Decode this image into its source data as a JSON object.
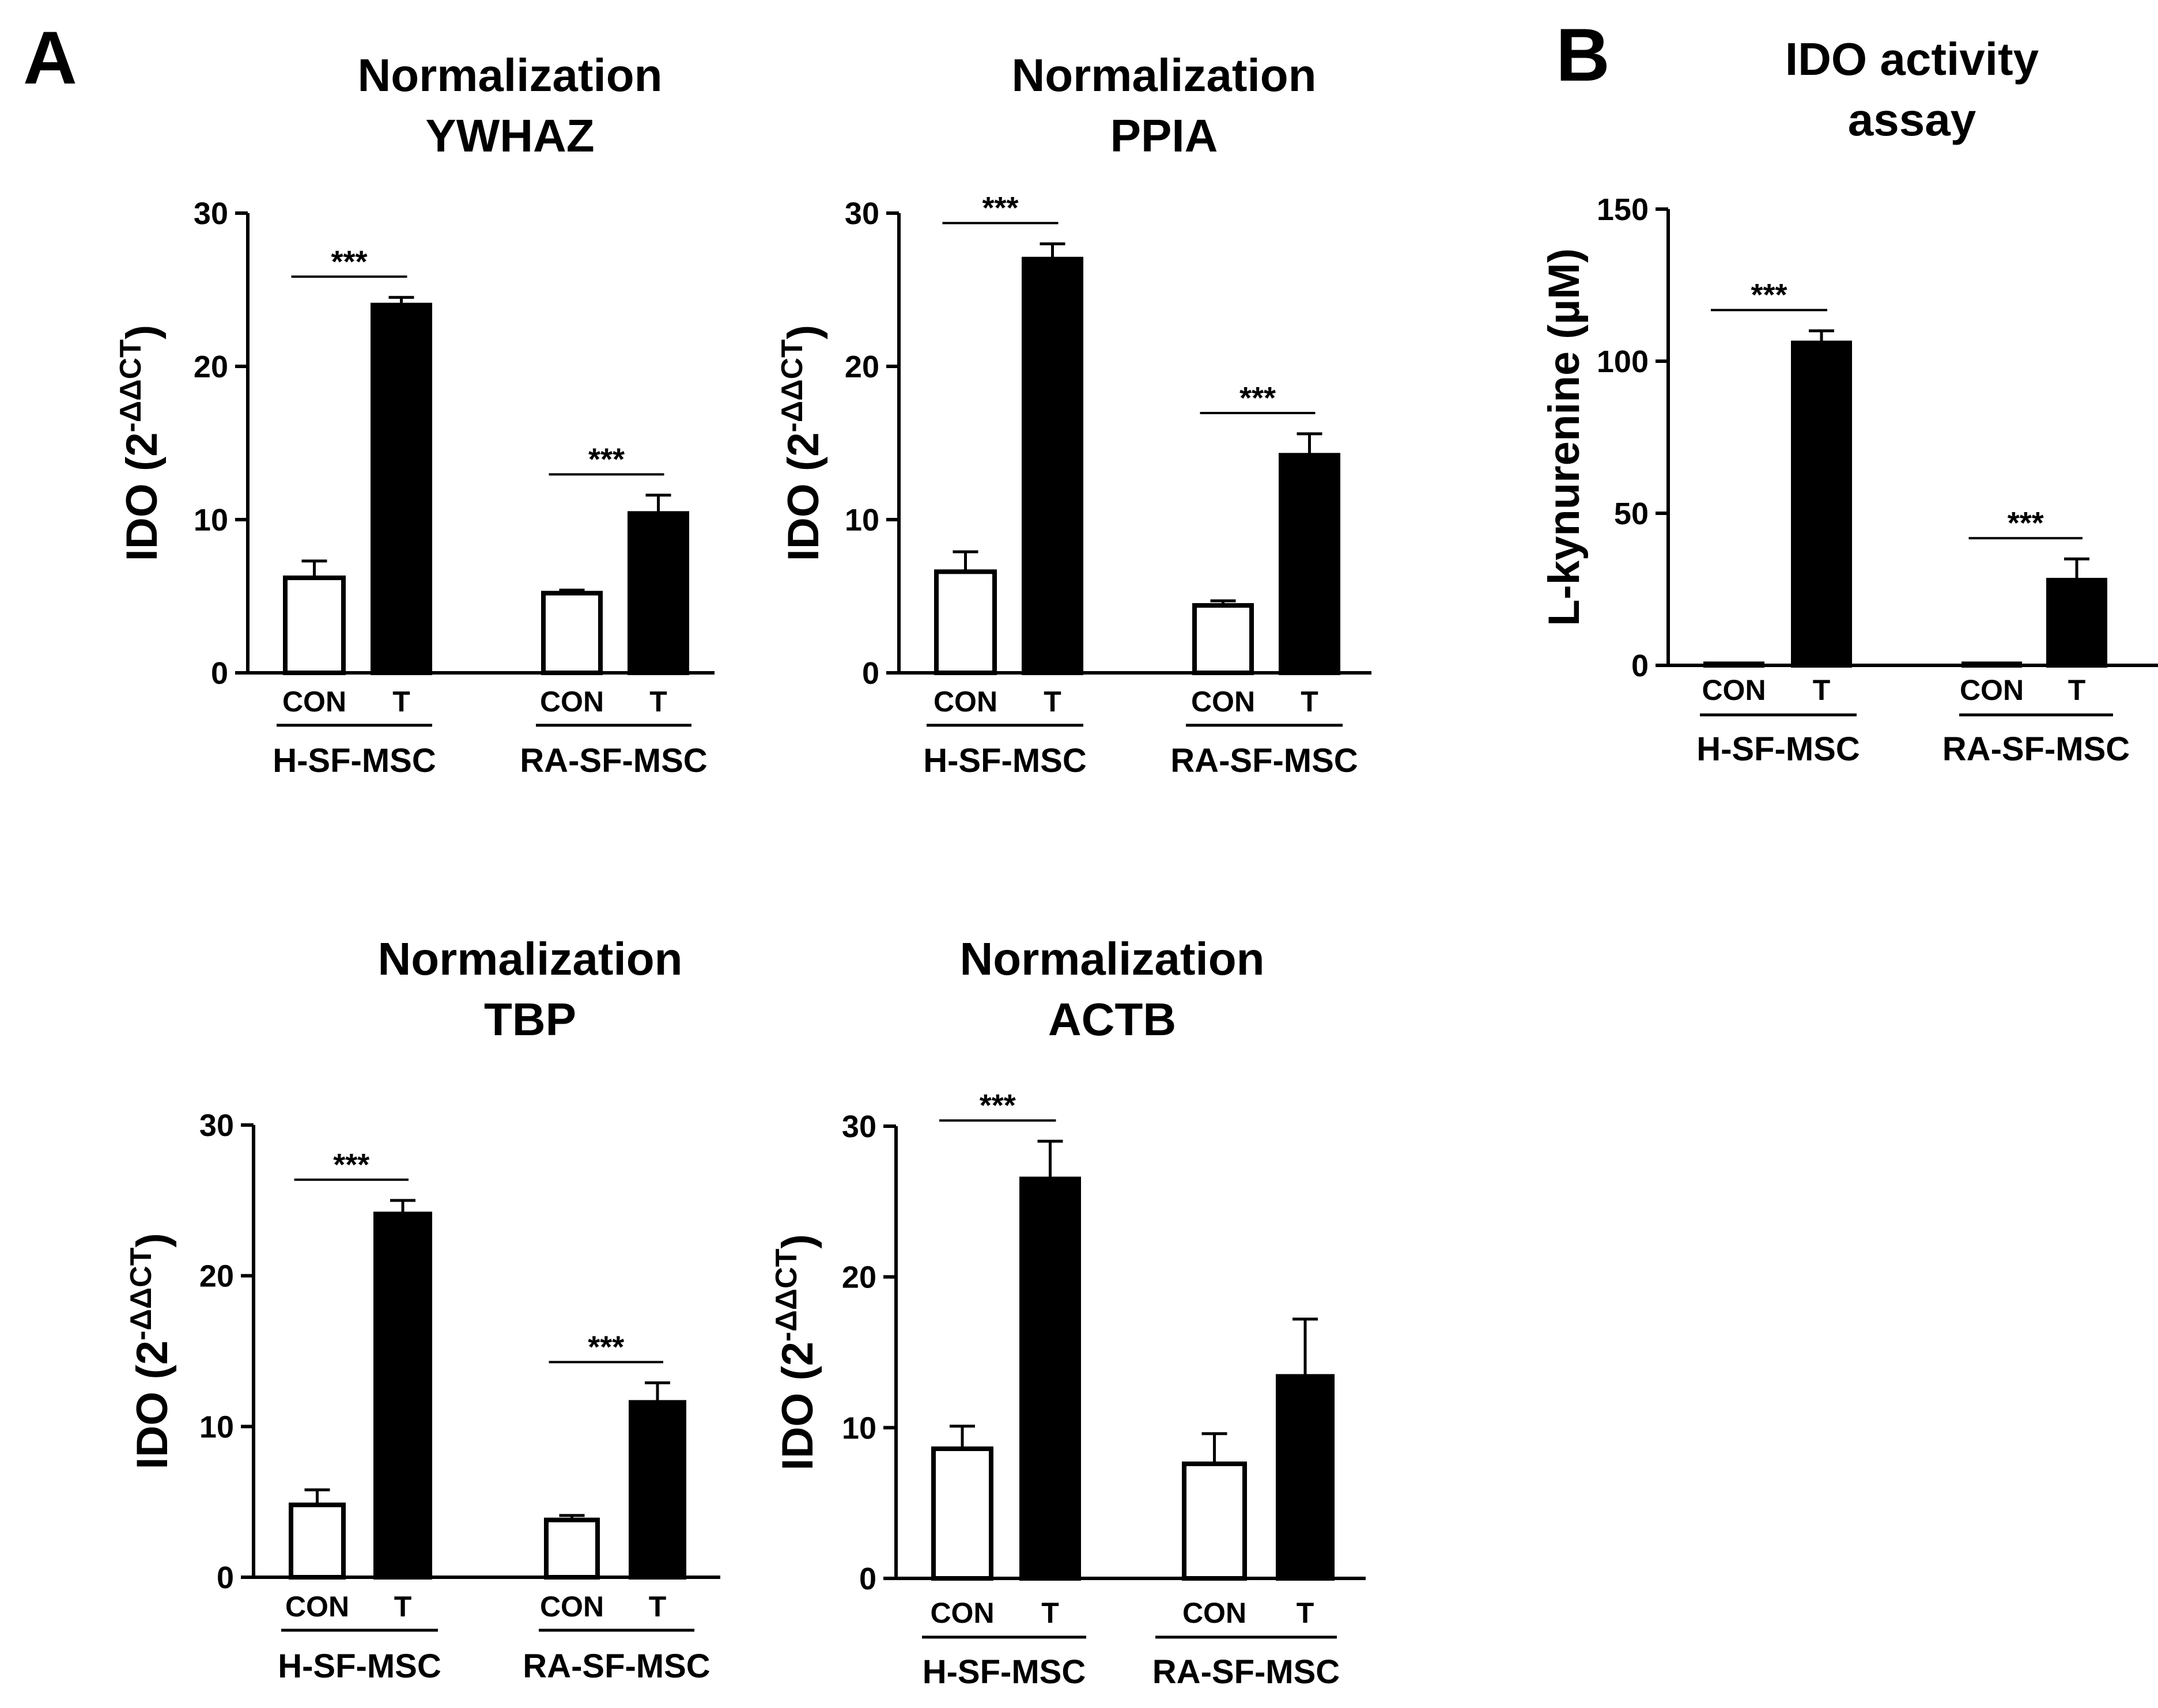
{
  "panels": [
    {
      "letter": "A"
    },
    {
      "letter": "B"
    }
  ],
  "chart_data": [
    {
      "id": "ywhaz",
      "panel": "A",
      "type": "bar",
      "title_lines": [
        "Normalization",
        "YWHAZ"
      ],
      "ylabel_main": "IDO (2",
      "ylabel_sup": "-ΔΔCT",
      "ylabel_close": ")",
      "ylim": [
        0,
        30
      ],
      "yticks": [
        0,
        10,
        20,
        30
      ],
      "groups": [
        {
          "name": "H-SF-MSC",
          "bars": [
            {
              "label": "CON",
              "value": 6.2,
              "error": 1.1,
              "filled": false
            },
            {
              "label": "T",
              "value": 24.0,
              "error": 0.5,
              "filled": true
            }
          ],
          "significance": "***"
        },
        {
          "name": "RA-SF-MSC",
          "bars": [
            {
              "label": "CON",
              "value": 5.2,
              "error": 0.2,
              "filled": false
            },
            {
              "label": "T",
              "value": 10.4,
              "error": 1.2,
              "filled": true
            }
          ],
          "significance": "***"
        }
      ]
    },
    {
      "id": "ppia",
      "panel": "A",
      "type": "bar",
      "title_lines": [
        "Normalization",
        "PPIA"
      ],
      "ylabel_main": "IDO (2",
      "ylabel_sup": "-ΔΔCT",
      "ylabel_close": ")",
      "ylim": [
        0,
        30
      ],
      "yticks": [
        0,
        10,
        20,
        30
      ],
      "groups": [
        {
          "name": "H-SF-MSC",
          "bars": [
            {
              "label": "CON",
              "value": 6.6,
              "error": 1.3,
              "filled": false
            },
            {
              "label": "T",
              "value": 27.0,
              "error": 1.0,
              "filled": true
            }
          ],
          "significance": "***"
        },
        {
          "name": "RA-SF-MSC",
          "bars": [
            {
              "label": "CON",
              "value": 4.4,
              "error": 0.3,
              "filled": false
            },
            {
              "label": "T",
              "value": 14.2,
              "error": 1.4,
              "filled": true
            }
          ],
          "significance": "***"
        }
      ]
    },
    {
      "id": "tbp",
      "panel": "A",
      "type": "bar",
      "title_lines": [
        "Normalization",
        "TBP"
      ],
      "ylabel_main": "IDO (2",
      "ylabel_sup": "-ΔΔCT",
      "ylabel_close": ")",
      "ylim": [
        0,
        30
      ],
      "yticks": [
        0,
        10,
        20,
        30
      ],
      "groups": [
        {
          "name": "H-SF-MSC",
          "bars": [
            {
              "label": "CON",
              "value": 4.8,
              "error": 1.0,
              "filled": false
            },
            {
              "label": "T",
              "value": 24.1,
              "error": 0.9,
              "filled": true
            }
          ],
          "significance": "***"
        },
        {
          "name": "RA-SF-MSC",
          "bars": [
            {
              "label": "CON",
              "value": 3.8,
              "error": 0.3,
              "filled": false
            },
            {
              "label": "T",
              "value": 11.6,
              "error": 1.3,
              "filled": true
            }
          ],
          "significance": "***"
        }
      ]
    },
    {
      "id": "actb",
      "panel": "A",
      "type": "bar",
      "title_lines": [
        "Normalization",
        "ACTB"
      ],
      "ylabel_main": "IDO (2",
      "ylabel_sup": "-ΔΔCT",
      "ylabel_close": ")",
      "ylim": [
        0,
        30
      ],
      "yticks": [
        0,
        10,
        20,
        30
      ],
      "groups": [
        {
          "name": "H-SF-MSC",
          "bars": [
            {
              "label": "CON",
              "value": 8.6,
              "error": 1.5,
              "filled": false
            },
            {
              "label": "T",
              "value": 26.5,
              "error": 2.5,
              "filled": true
            }
          ],
          "significance": "***"
        },
        {
          "name": "RA-SF-MSC",
          "bars": [
            {
              "label": "CON",
              "value": 7.6,
              "error": 2.0,
              "filled": false
            },
            {
              "label": "T",
              "value": 13.4,
              "error": 3.8,
              "filled": true
            }
          ],
          "significance": ""
        }
      ]
    },
    {
      "id": "ido-activity",
      "panel": "B",
      "type": "bar",
      "title_lines": [
        "IDO activity",
        "assay"
      ],
      "ylabel_main": "L-kynurenine (µM)",
      "ylabel_sup": "",
      "ylabel_close": "",
      "ylim": [
        0,
        150
      ],
      "yticks": [
        0,
        50,
        100,
        150
      ],
      "groups": [
        {
          "name": "H-SF-MSC",
          "bars": [
            {
              "label": "CON",
              "value": 0.5,
              "error": 0,
              "filled": false
            },
            {
              "label": "T",
              "value": 106,
              "error": 4,
              "filled": true
            }
          ],
          "significance": "***"
        },
        {
          "name": "RA-SF-MSC",
          "bars": [
            {
              "label": "CON",
              "value": 0.5,
              "error": 0,
              "filled": false
            },
            {
              "label": "T",
              "value": 28,
              "error": 7,
              "filled": true
            }
          ],
          "significance": "***"
        }
      ]
    }
  ]
}
